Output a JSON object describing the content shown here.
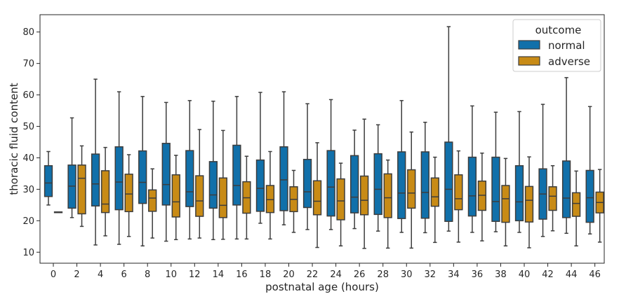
{
  "chart_data": {
    "type": "box",
    "xlabel": "postnatal age (hours)",
    "ylabel": "thoracic fluid content",
    "ylim": [
      6.5,
      85.5
    ],
    "yticks": [
      10,
      20,
      30,
      40,
      50,
      60,
      70,
      80
    ],
    "categories": [
      "0",
      "2",
      "4",
      "6",
      "8",
      "10",
      "12",
      "14",
      "16",
      "18",
      "20",
      "22",
      "24",
      "26",
      "28",
      "30",
      "32",
      "34",
      "36",
      "38",
      "40",
      "42",
      "44",
      "46"
    ],
    "legend": {
      "title": "outcome",
      "position": "top-right"
    },
    "grid": false,
    "series": [
      {
        "name": "normal",
        "color": "#1170aa",
        "boxes": [
          {
            "whislo": 25.0,
            "q1": 27.7,
            "med": 32.0,
            "q3": 37.5,
            "whishi": 42.0
          },
          {
            "whislo": 21.0,
            "q1": 24.0,
            "med": 31.0,
            "q3": 37.7,
            "whishi": 52.7
          },
          {
            "whislo": 12.3,
            "q1": 24.7,
            "med": 31.7,
            "q3": 41.2,
            "whishi": 65.0
          },
          {
            "whislo": 12.5,
            "q1": 23.5,
            "med": 32.3,
            "q3": 43.5,
            "whishi": 61.0
          },
          {
            "whislo": 12.0,
            "q1": 25.5,
            "med": 32.2,
            "q3": 42.2,
            "whishi": 59.5
          },
          {
            "whislo": 13.5,
            "q1": 25.0,
            "med": 31.5,
            "q3": 44.6,
            "whishi": 57.6
          },
          {
            "whislo": 14.2,
            "q1": 24.5,
            "med": 29.2,
            "q3": 42.3,
            "whishi": 58.2
          },
          {
            "whislo": 14.0,
            "q1": 24.0,
            "med": 28.2,
            "q3": 38.8,
            "whishi": 58.0
          },
          {
            "whislo": 14.2,
            "q1": 25.0,
            "med": 31.2,
            "q3": 44.0,
            "whishi": 59.5
          },
          {
            "whislo": 19.2,
            "q1": 23.0,
            "med": 30.3,
            "q3": 39.3,
            "whishi": 60.8
          },
          {
            "whislo": 18.7,
            "q1": 23.2,
            "med": 33.0,
            "q3": 43.5,
            "whishi": 61.0
          },
          {
            "whislo": 17.2,
            "q1": 24.2,
            "med": 29.2,
            "q3": 39.5,
            "whishi": 57.2
          },
          {
            "whislo": 17.2,
            "q1": 21.5,
            "med": 30.7,
            "q3": 42.3,
            "whishi": 58.5
          },
          {
            "whislo": 17.5,
            "q1": 22.5,
            "med": 27.5,
            "q3": 40.7,
            "whishi": 48.8
          },
          {
            "whislo": 16.7,
            "q1": 22.0,
            "med": 30.0,
            "q3": 41.3,
            "whishi": 50.5
          },
          {
            "whislo": 16.3,
            "q1": 20.7,
            "med": 28.8,
            "q3": 41.9,
            "whishi": 58.2
          },
          {
            "whislo": 16.2,
            "q1": 20.8,
            "med": 29.0,
            "q3": 41.9,
            "whishi": 51.3
          },
          {
            "whislo": 16.7,
            "q1": 19.8,
            "med": 30.0,
            "q3": 45.0,
            "whishi": 81.7
          },
          {
            "whislo": 16.3,
            "q1": 21.5,
            "med": 27.9,
            "q3": 40.2,
            "whishi": 56.5
          },
          {
            "whislo": 16.5,
            "q1": 19.8,
            "med": 26.1,
            "q3": 40.2,
            "whishi": 54.5
          },
          {
            "whislo": 16.3,
            "q1": 20.0,
            "med": 26.0,
            "q3": 37.5,
            "whishi": 54.7
          },
          {
            "whislo": 15.0,
            "q1": 20.5,
            "med": 28.5,
            "q3": 36.5,
            "whishi": 57.0
          },
          {
            "whislo": 16.0,
            "q1": 21.0,
            "med": 27.2,
            "q3": 39.0,
            "whishi": 65.5
          },
          {
            "whislo": 15.8,
            "q1": 19.5,
            "med": 27.3,
            "q3": 36.0,
            "whishi": 56.3
          }
        ]
      },
      {
        "name": "adverse",
        "color": "#c88b16",
        "boxes": [
          {
            "whislo": 22.6,
            "q1": 22.6,
            "med": 22.7,
            "q3": 22.8,
            "whishi": 22.8
          },
          {
            "whislo": 18.2,
            "q1": 22.2,
            "med": 33.5,
            "q3": 37.7,
            "whishi": 43.8
          },
          {
            "whislo": 15.2,
            "q1": 22.6,
            "med": 25.3,
            "q3": 35.9,
            "whishi": 43.3
          },
          {
            "whislo": 15.0,
            "q1": 22.9,
            "med": 28.5,
            "q3": 34.8,
            "whishi": 41.0
          },
          {
            "whislo": 14.5,
            "q1": 23.0,
            "med": 27.2,
            "q3": 29.8,
            "whishi": 36.5
          },
          {
            "whislo": 14.0,
            "q1": 21.2,
            "med": 26.0,
            "q3": 34.6,
            "whishi": 40.8
          },
          {
            "whislo": 14.5,
            "q1": 21.4,
            "med": 26.3,
            "q3": 34.3,
            "whishi": 49.0
          },
          {
            "whislo": 14.1,
            "q1": 21.0,
            "med": 24.9,
            "q3": 33.6,
            "whishi": 48.7
          },
          {
            "whislo": 14.2,
            "q1": 22.4,
            "med": 27.3,
            "q3": 32.4,
            "whishi": 40.5
          },
          {
            "whislo": 14.2,
            "q1": 22.6,
            "med": 26.7,
            "q3": 31.2,
            "whishi": 42.0
          },
          {
            "whislo": 16.3,
            "q1": 22.9,
            "med": 26.8,
            "q3": 30.8,
            "whishi": 36.0
          },
          {
            "whislo": 11.5,
            "q1": 21.9,
            "med": 26.2,
            "q3": 32.7,
            "whishi": 44.8
          },
          {
            "whislo": 12.0,
            "q1": 20.3,
            "med": 26.3,
            "q3": 33.3,
            "whishi": 38.3
          },
          {
            "whislo": 11.2,
            "q1": 21.9,
            "med": 26.5,
            "q3": 34.2,
            "whishi": 52.3
          },
          {
            "whislo": 11.3,
            "q1": 21.0,
            "med": 27.3,
            "q3": 34.9,
            "whishi": 39.3
          },
          {
            "whislo": 11.3,
            "q1": 24.0,
            "med": 28.8,
            "q3": 36.2,
            "whishi": 48.2
          },
          {
            "whislo": 13.1,
            "q1": 24.6,
            "med": 27.6,
            "q3": 33.6,
            "whishi": 40.2
          },
          {
            "whislo": 13.2,
            "q1": 23.5,
            "med": 27.0,
            "q3": 34.6,
            "whishi": 42.2
          },
          {
            "whislo": 13.6,
            "q1": 23.3,
            "med": 28.1,
            "q3": 32.6,
            "whishi": 41.5
          },
          {
            "whislo": 12.0,
            "q1": 19.5,
            "med": 27.0,
            "q3": 31.2,
            "whishi": 39.8
          },
          {
            "whislo": 11.4,
            "q1": 19.6,
            "med": 26.5,
            "q3": 30.9,
            "whishi": 40.3
          },
          {
            "whislo": 16.8,
            "q1": 23.3,
            "med": 27.8,
            "q3": 30.8,
            "whishi": 37.5
          },
          {
            "whislo": 12.0,
            "q1": 21.4,
            "med": 25.5,
            "q3": 28.9,
            "whishi": 35.8
          },
          {
            "whislo": 13.2,
            "q1": 22.5,
            "med": 25.8,
            "q3": 29.1,
            "whishi": 36.3
          }
        ]
      }
    ]
  }
}
